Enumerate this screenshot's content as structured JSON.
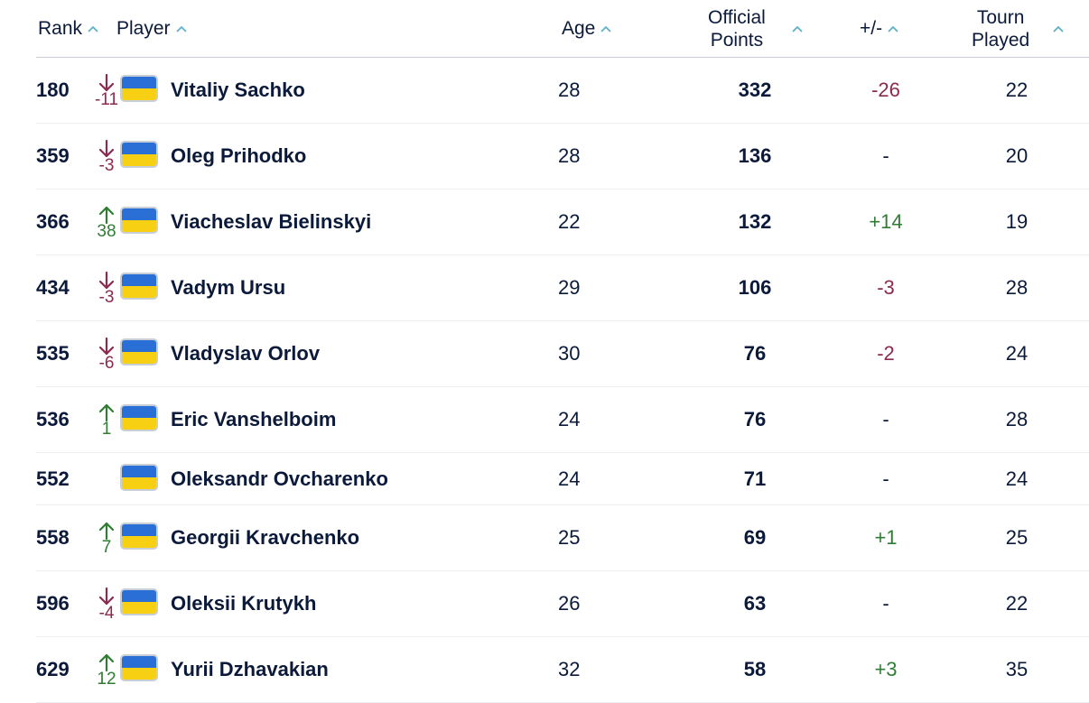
{
  "header": {
    "rank": "Rank",
    "player": "Player",
    "age": "Age",
    "points_line1": "Official",
    "points_line2": "Points",
    "plus_minus": "+/-",
    "played_line1": "Tourn",
    "played_line2": "Played"
  },
  "colors": {
    "text": "#0b1a3a",
    "up": "#2f7d33",
    "down": "#8a2a4f",
    "flag_blue": "#2a6fd6",
    "flag_yellow": "#f7cf13",
    "caret": "#5fb0c9"
  },
  "rows": [
    {
      "rank": "180",
      "direction": "down",
      "delta": "-11",
      "flag": "ukraine-flag-icon",
      "name": "Vitaliy Sachko",
      "age": "28",
      "points": "332",
      "plus_minus": "-26",
      "pm_sign": "neg",
      "played": "22"
    },
    {
      "rank": "359",
      "direction": "down",
      "delta": "-3",
      "flag": "ukraine-flag-icon",
      "name": "Oleg Prihodko",
      "age": "28",
      "points": "136",
      "plus_minus": "-",
      "pm_sign": "none",
      "played": "20"
    },
    {
      "rank": "366",
      "direction": "up",
      "delta": "38",
      "flag": "ukraine-flag-icon",
      "name": "Viacheslav Bielinskyi",
      "age": "22",
      "points": "132",
      "plus_minus": "+14",
      "pm_sign": "pos",
      "played": "19"
    },
    {
      "rank": "434",
      "direction": "down",
      "delta": "-3",
      "flag": "ukraine-flag-icon",
      "name": "Vadym Ursu",
      "age": "29",
      "points": "106",
      "plus_minus": "-3",
      "pm_sign": "neg",
      "played": "28"
    },
    {
      "rank": "535",
      "direction": "down",
      "delta": "-6",
      "flag": "ukraine-flag-icon",
      "name": "Vladyslav Orlov",
      "age": "30",
      "points": "76",
      "plus_minus": "-2",
      "pm_sign": "neg",
      "played": "24"
    },
    {
      "rank": "536",
      "direction": "up",
      "delta": "1",
      "flag": "ukraine-flag-icon",
      "name": "Eric Vanshelboim",
      "age": "24",
      "points": "76",
      "plus_minus": "-",
      "pm_sign": "none",
      "played": "28"
    },
    {
      "rank": "552",
      "direction": "none",
      "delta": "",
      "flag": "ukraine-flag-icon",
      "name": "Oleksandr Ovcharenko",
      "age": "24",
      "points": "71",
      "plus_minus": "-",
      "pm_sign": "none",
      "played": "24"
    },
    {
      "rank": "558",
      "direction": "up",
      "delta": "7",
      "flag": "ukraine-flag-icon",
      "name": "Georgii Kravchenko",
      "age": "25",
      "points": "69",
      "plus_minus": "+1",
      "pm_sign": "pos",
      "played": "25"
    },
    {
      "rank": "596",
      "direction": "down",
      "delta": "-4",
      "flag": "ukraine-flag-icon",
      "name": "Oleksii Krutykh",
      "age": "26",
      "points": "63",
      "plus_minus": "-",
      "pm_sign": "none",
      "played": "22"
    },
    {
      "rank": "629",
      "direction": "up",
      "delta": "12",
      "flag": "ukraine-flag-icon",
      "name": "Yurii Dzhavakian",
      "age": "32",
      "points": "58",
      "plus_minus": "+3",
      "pm_sign": "pos",
      "played": "35"
    }
  ]
}
